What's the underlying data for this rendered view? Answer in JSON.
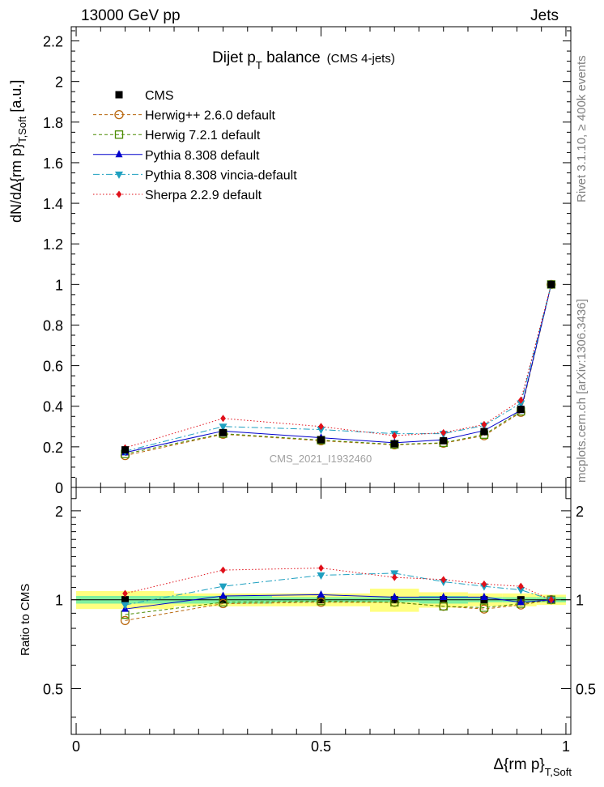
{
  "header": {
    "left": "13000 GeV pp",
    "right": "Jets"
  },
  "side_labels": {
    "top": "Rivet 3.1.10, ≥ 400k events",
    "bottom": "mcplots.cern.ch [arXiv:1306.3436]"
  },
  "watermark": "CMS_2021_I1932460",
  "chart_data": [
    {
      "type": "line",
      "panel": "main",
      "title_main": "Dijet p",
      "title_sub": "T",
      "title_rest": " balance",
      "title_note": "(CMS 4-jets)",
      "ylabel": "dN/dΔ{rm p}",
      "ylabel_sub": "T,Soft",
      "ylabel_unit": " [a.u.]",
      "xlim": [
        -0.01,
        1.01
      ],
      "ylim": [
        0,
        2.27
      ],
      "yticks": [
        0,
        0.2,
        0.4,
        0.6,
        0.8,
        1,
        1.2,
        1.4,
        1.6,
        1.8,
        2,
        2.2
      ],
      "ytick_labels": [
        "0",
        "0.2",
        "0.4",
        "0.6",
        "0.8",
        "1",
        "1.2",
        "1.4",
        "1.6",
        "1.8",
        "2",
        "2.2"
      ],
      "x": [
        0.1,
        0.3,
        0.5,
        0.65,
        0.75,
        0.833,
        0.908,
        0.97
      ],
      "series": [
        {
          "name": "CMS",
          "color": "#000000",
          "marker": "square",
          "line": "none",
          "values": [
            0.185,
            0.27,
            0.235,
            0.215,
            0.23,
            0.275,
            0.385,
            1.0
          ]
        },
        {
          "name": "Herwig++ 2.6.0 default",
          "color": "#b8660b",
          "marker": "open-circle",
          "line": "dashed",
          "values": [
            0.157,
            0.262,
            0.23,
            0.21,
            0.218,
            0.255,
            0.37,
            1.0
          ]
        },
        {
          "name": "Herwig 7.2.1 default",
          "color": "#4a8a00",
          "marker": "open-square",
          "line": "dashed",
          "values": [
            0.165,
            0.265,
            0.233,
            0.212,
            0.22,
            0.26,
            0.375,
            1.0
          ]
        },
        {
          "name": "Pythia 8.308 default",
          "color": "#0000cc",
          "marker": "triangle-up",
          "line": "solid",
          "values": [
            0.172,
            0.278,
            0.245,
            0.22,
            0.235,
            0.28,
            0.38,
            1.0
          ]
        },
        {
          "name": "Pythia 8.308 vincia-default",
          "color": "#1fa0c0",
          "marker": "triangle-down",
          "line": "dashdot",
          "values": [
            0.178,
            0.3,
            0.285,
            0.265,
            0.265,
            0.305,
            0.415,
            1.0
          ]
        },
        {
          "name": "Sherpa 2.2.9 default",
          "color": "#e0101a",
          "marker": "diamond",
          "line": "dotted",
          "values": [
            0.195,
            0.34,
            0.3,
            0.255,
            0.27,
            0.31,
            0.43,
            1.0
          ]
        }
      ]
    },
    {
      "type": "line",
      "panel": "ratio",
      "ylabel": "Ratio to CMS",
      "xlabel": "Δ{rm p}",
      "xlabel_sub": "T,Soft",
      "xlim": [
        -0.01,
        1.01
      ],
      "ylim": [
        0.35,
        2.4
      ],
      "yscale": "log",
      "yticks": [
        0.5,
        1,
        2
      ],
      "ytick_labels": [
        "0.5",
        "1",
        "2"
      ],
      "xticks": [
        0,
        0.5,
        1
      ],
      "xtick_labels": [
        "0",
        "0.5",
        "1"
      ],
      "band_bins": [
        0,
        0.2,
        0.4,
        0.6,
        0.7,
        0.8,
        0.87,
        0.94,
        1.0
      ],
      "band_stat": [
        0.03,
        0.03,
        0.02,
        0.02,
        0.03,
        0.02,
        0.02,
        0.02
      ],
      "band_total": [
        0.07,
        0.05,
        0.05,
        0.09,
        0.06,
        0.05,
        0.05,
        0.04
      ],
      "x": [
        0.1,
        0.3,
        0.5,
        0.65,
        0.75,
        0.833,
        0.908,
        0.97
      ],
      "series": [
        {
          "name": "Herwig++ 2.6.0 default",
          "values": [
            0.85,
            0.97,
            0.98,
            0.98,
            0.95,
            0.93,
            0.96,
            1.0
          ]
        },
        {
          "name": "Herwig 7.2.1 default",
          "values": [
            0.89,
            0.98,
            0.99,
            0.98,
            0.95,
            0.94,
            0.97,
            1.0
          ]
        },
        {
          "name": "Pythia 8.308 default",
          "values": [
            0.93,
            1.03,
            1.04,
            1.02,
            1.02,
            1.02,
            0.98,
            1.0
          ]
        },
        {
          "name": "Pythia 8.308 vincia-default",
          "values": [
            0.96,
            1.11,
            1.21,
            1.23,
            1.15,
            1.11,
            1.08,
            1.0
          ]
        },
        {
          "name": "Sherpa 2.2.9 default",
          "values": [
            1.05,
            1.26,
            1.28,
            1.19,
            1.17,
            1.13,
            1.11,
            1.0
          ]
        }
      ]
    }
  ]
}
